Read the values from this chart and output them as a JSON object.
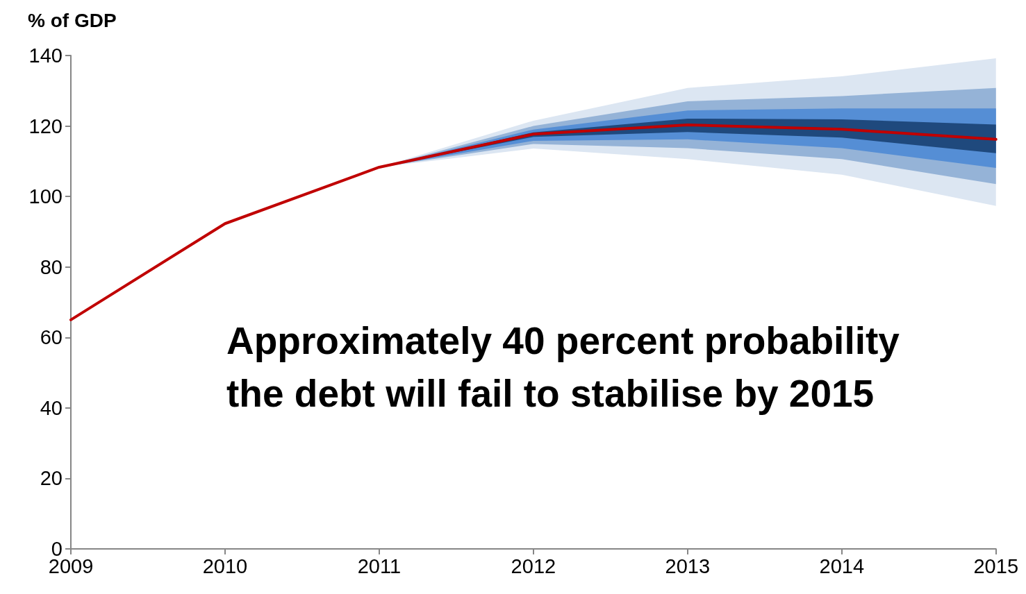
{
  "chart_data": {
    "type": "line",
    "ylabel": "% of GDP",
    "x": [
      2009,
      2010,
      2011,
      2012,
      2013,
      2014,
      2015
    ],
    "series": [
      {
        "color": "#dce6f2",
        "x": [
          2011,
          2012,
          2013,
          2014,
          2015
        ],
        "values": [
          null,
          null,
          null,
          null,
          null
        ],
        "lower": [
          108.3,
          113.6,
          110.6,
          106.2,
          97.3
        ],
        "upper": [
          108.3,
          121.5,
          130.8,
          134.1,
          139.2
        ]
      },
      {
        "color": "#95b3d7",
        "x": [
          2011,
          2012,
          2013,
          2014,
          2015
        ],
        "values": [
          null,
          null,
          null,
          null,
          null
        ],
        "lower": [
          108.3,
          114.9,
          113.7,
          110.6,
          103.5
        ],
        "upper": [
          108.3,
          120.0,
          127.0,
          128.5,
          130.8
        ]
      },
      {
        "color": "#558ed5",
        "x": [
          2011,
          2012,
          2013,
          2014,
          2015
        ],
        "values": [
          null,
          null,
          null,
          null,
          null
        ],
        "lower": [
          108.3,
          115.8,
          116.2,
          113.7,
          108.1
        ],
        "upper": [
          108.3,
          119.0,
          124.4,
          125.0,
          125.0
        ]
      },
      {
        "color": "#1f497d",
        "x": [
          2011,
          2012,
          2013,
          2014,
          2015
        ],
        "values": [
          null,
          null,
          null,
          null,
          null
        ],
        "lower": [
          108.3,
          116.9,
          118.3,
          116.7,
          112.3
        ],
        "upper": [
          108.3,
          118.2,
          122.1,
          121.9,
          120.4
        ]
      },
      {
        "type": "line",
        "color": "#c00000",
        "values": [
          65,
          92.3,
          108.3,
          117.7,
          120.3,
          119.1,
          116.2
        ]
      }
    ],
    "xlim": [
      2009,
      2015
    ],
    "xticks": [
      2009,
      2010,
      2011,
      2012,
      2013,
      2014,
      2015
    ],
    "ylim": [
      0,
      140
    ],
    "yticks": [
      0,
      20,
      40,
      60,
      80,
      100,
      120,
      140
    ],
    "grid": false,
    "marker": "none",
    "line_style": "solid",
    "annotations": [
      "Approximately 40 percent probability the debt will fail to stabilise by 2015"
    ]
  }
}
